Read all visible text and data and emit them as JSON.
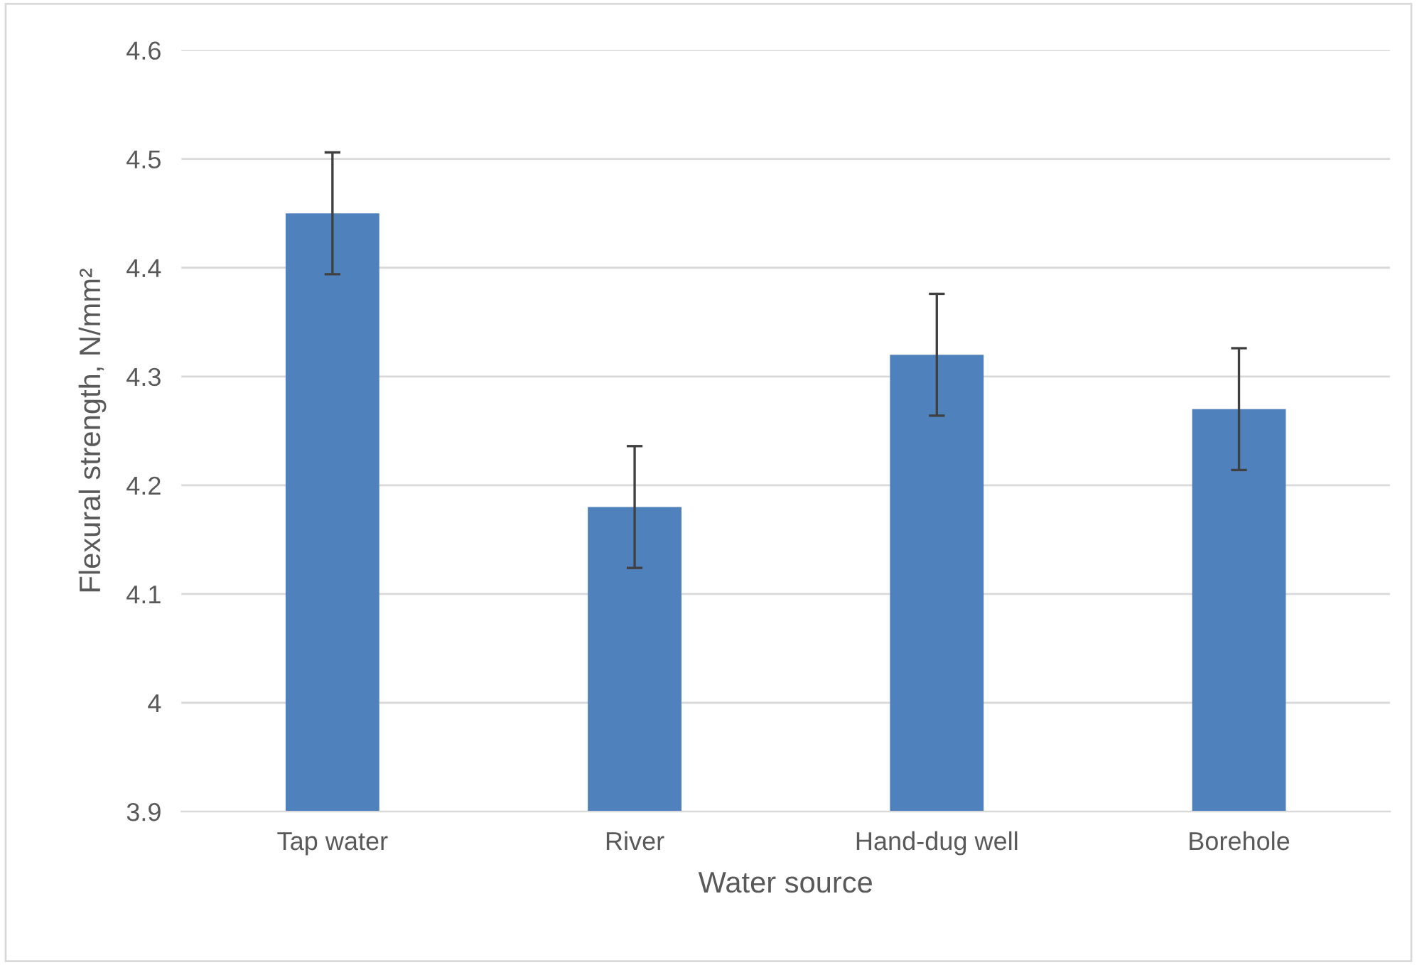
{
  "chart_data": {
    "type": "bar",
    "xlabel": "Water source",
    "ylabel": "Flexural strength, N/mm²",
    "categories": [
      "Tap water",
      "River",
      "Hand-dug well",
      "Borehole"
    ],
    "values": [
      4.45,
      4.18,
      4.32,
      4.27
    ],
    "errors": [
      0.056,
      0.056,
      0.056,
      0.056
    ],
    "color": "#4f81bd",
    "ylim": [
      3.9,
      4.6
    ],
    "yticks": [
      3.9,
      4,
      4.1,
      4.2,
      4.3,
      4.4,
      4.5,
      4.6
    ],
    "grid": "y",
    "legend": false
  }
}
